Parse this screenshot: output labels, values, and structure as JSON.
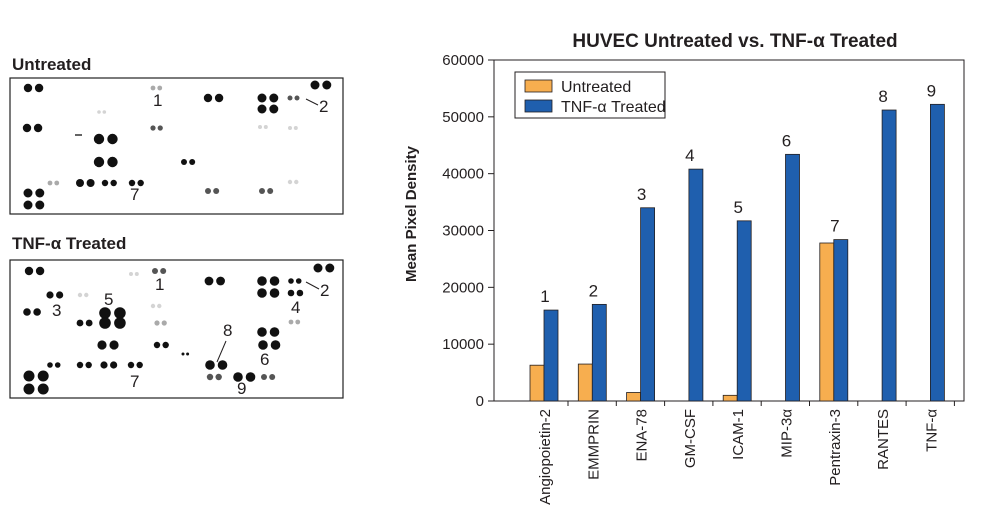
{
  "blots": [
    {
      "label": "Untreated",
      "callouts": [
        {
          "number": "1"
        },
        {
          "number": "2"
        },
        {
          "number": "7"
        }
      ]
    },
    {
      "label": "TNF-α Treated",
      "callouts": [
        {
          "number": "1"
        },
        {
          "number": "2"
        },
        {
          "number": "3"
        },
        {
          "number": "4"
        },
        {
          "number": "5"
        },
        {
          "number": "6"
        },
        {
          "number": "7"
        },
        {
          "number": "8"
        },
        {
          "number": "9"
        }
      ]
    }
  ],
  "chart_data": {
    "type": "bar",
    "title": "HUVEC Untreated vs. TNF-α Treated",
    "ylabel": "Mean Pixel Density",
    "xlabel": "",
    "ylim": [
      0,
      60000
    ],
    "yticks": [
      0,
      10000,
      20000,
      30000,
      40000,
      50000,
      60000
    ],
    "grid": false,
    "legend_position": "top-left",
    "categories": [
      "Angiopoietin-2",
      "EMMPRIN",
      "ENA-78",
      "GM-CSF",
      "ICAM-1",
      "MIP-3α",
      "Pentraxin-3",
      "RANTES",
      "TNF-α"
    ],
    "annotations": [
      "1",
      "2",
      "3",
      "4",
      "5",
      "6",
      "7",
      "8",
      "9"
    ],
    "series": [
      {
        "name": "Untreated",
        "color": "#F7AE4F",
        "values": [
          6300,
          6500,
          1500,
          0,
          1000,
          0,
          27800,
          0,
          0
        ]
      },
      {
        "name": "TNF-α Treated",
        "color": "#1F5FAE",
        "values": [
          16000,
          17000,
          34000,
          40800,
          31700,
          43400,
          28400,
          51200,
          52200
        ]
      }
    ]
  }
}
